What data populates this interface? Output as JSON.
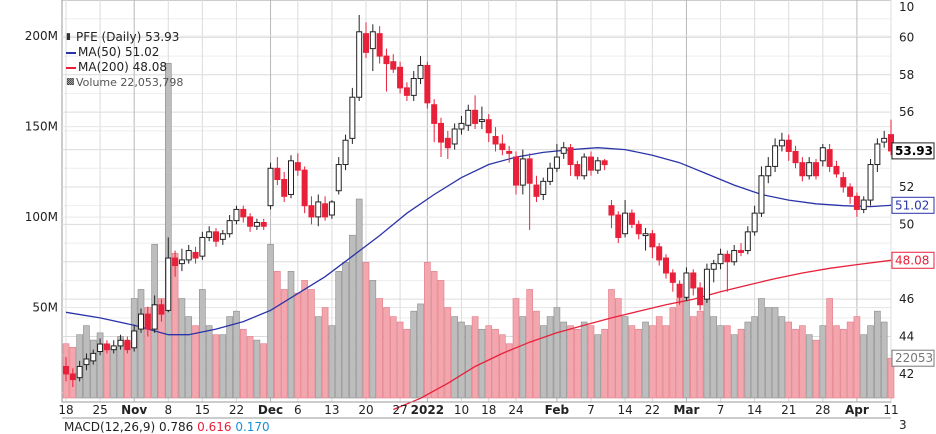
{
  "legend": {
    "title": "PFE (Daily) 53.93",
    "ma50": "MA(50) 51.02",
    "ma200": "MA(200) 48.08",
    "volume": "Volume 22,053,798"
  },
  "macd": {
    "label": "MACD(12,26,9) 0.786",
    "v2": "0.616",
    "v3": "0.170"
  },
  "colors": {
    "up": "#222222",
    "down": "#e8203a",
    "ma50": "#2a34a8",
    "ma200": "#e8203a",
    "vol_up": "#bdbdbd",
    "vol_down": "#f4a6ae",
    "grid": "#dcdcdc"
  },
  "chart_data": {
    "type": "candlestick",
    "price_axis": {
      "min": 40.5,
      "max": 62.0,
      "ticks": [
        42,
        44,
        46,
        48,
        50,
        52,
        54,
        56,
        58,
        60
      ],
      "top_partial": "10",
      "bottom_partial": "3"
    },
    "volume_axis": {
      "min": 0,
      "max": 220,
      "unit": "M",
      "ticks": [
        "50M",
        "100M",
        "150M",
        "200M"
      ],
      "tick_values": [
        50,
        100,
        150,
        200
      ]
    },
    "x_labels": [
      "18",
      "25",
      "Nov",
      "8",
      "15",
      "22",
      "Dec",
      "6",
      "13",
      "20",
      "27",
      "2022",
      "10",
      "18",
      "24",
      "Feb",
      "7",
      "14",
      "22",
      "Mar",
      "7",
      "14",
      "21",
      "28",
      "Apr",
      "11"
    ],
    "x_label_days": [
      0,
      5,
      10,
      15,
      20,
      25,
      30,
      34,
      39,
      44,
      49,
      53,
      58,
      62,
      66,
      72,
      77,
      82,
      86,
      91,
      96,
      101,
      106,
      111,
      116,
      121
    ],
    "month_boundaries": [
      10,
      30,
      53,
      72,
      91,
      116
    ],
    "last_price": "53.93",
    "ma50_last": "51.02",
    "ma200_last": "48.08",
    "volume_last": "22053",
    "candles": [
      [
        42.4,
        42.0,
        42.9,
        41.6,
        30
      ],
      [
        42.0,
        41.7,
        42.3,
        41.3,
        28
      ],
      [
        41.8,
        42.4,
        42.7,
        41.6,
        35
      ],
      [
        42.5,
        42.8,
        43.1,
        42.2,
        40
      ],
      [
        42.7,
        43.1,
        43.3,
        42.5,
        32
      ],
      [
        43.2,
        43.6,
        43.9,
        43.0,
        36
      ],
      [
        43.6,
        43.3,
        43.8,
        43.1,
        30
      ],
      [
        43.3,
        43.5,
        43.8,
        43.1,
        28
      ],
      [
        43.5,
        43.8,
        44.1,
        43.3,
        34
      ],
      [
        43.8,
        43.3,
        44.0,
        43.1,
        31
      ],
      [
        43.4,
        44.3,
        44.6,
        43.2,
        55
      ],
      [
        44.4,
        45.2,
        45.5,
        44.2,
        60
      ],
      [
        45.2,
        44.4,
        45.6,
        44.0,
        50
      ],
      [
        44.4,
        45.7,
        46.2,
        44.2,
        85
      ],
      [
        45.7,
        45.2,
        46.0,
        44.8,
        55
      ],
      [
        45.4,
        48.2,
        49.3,
        45.3,
        185
      ],
      [
        48.2,
        47.8,
        48.6,
        47.2,
        80
      ],
      [
        47.9,
        48.1,
        48.7,
        47.5,
        55
      ],
      [
        48.1,
        48.6,
        48.9,
        47.9,
        45
      ],
      [
        48.5,
        48.2,
        48.8,
        47.9,
        40
      ],
      [
        48.3,
        49.3,
        49.6,
        48.1,
        60
      ],
      [
        49.3,
        49.6,
        49.9,
        49.1,
        40
      ],
      [
        49.6,
        49.1,
        49.8,
        48.8,
        35
      ],
      [
        49.2,
        49.5,
        49.7,
        48.9,
        35
      ],
      [
        49.5,
        50.2,
        50.5,
        49.3,
        45
      ],
      [
        50.2,
        50.8,
        51.0,
        50.0,
        48
      ],
      [
        50.8,
        50.4,
        51.0,
        50.1,
        38
      ],
      [
        50.4,
        49.9,
        50.6,
        49.6,
        34
      ],
      [
        49.9,
        50.1,
        50.3,
        49.7,
        32
      ],
      [
        50.1,
        49.9,
        50.3,
        49.7,
        30
      ],
      [
        51.0,
        53.0,
        53.3,
        50.8,
        85
      ],
      [
        53.0,
        52.4,
        53.6,
        52.1,
        70
      ],
      [
        52.4,
        51.5,
        52.8,
        51.2,
        60
      ],
      [
        51.6,
        53.4,
        53.7,
        51.4,
        70
      ],
      [
        53.3,
        52.9,
        53.8,
        52.6,
        58
      ],
      [
        52.9,
        51.0,
        53.1,
        50.6,
        65
      ],
      [
        51.0,
        50.4,
        51.5,
        50.0,
        60
      ],
      [
        50.4,
        51.2,
        51.6,
        49.9,
        45
      ],
      [
        51.1,
        50.4,
        51.5,
        50.2,
        50
      ],
      [
        50.5,
        51.2,
        51.3,
        50.3,
        40
      ],
      [
        51.8,
        53.2,
        53.6,
        51.6,
        70
      ],
      [
        53.2,
        54.5,
        54.8,
        52.9,
        75
      ],
      [
        54.6,
        56.8,
        57.3,
        54.3,
        90
      ],
      [
        56.8,
        60.3,
        61.2,
        56.6,
        110
      ],
      [
        60.2,
        59.2,
        60.8,
        58.9,
        75
      ],
      [
        59.4,
        60.3,
        60.7,
        58.2,
        65
      ],
      [
        60.2,
        59.0,
        60.6,
        58.6,
        55
      ],
      [
        59.0,
        58.6,
        59.4,
        57.1,
        50
      ],
      [
        58.7,
        58.3,
        59.1,
        58.1,
        45
      ],
      [
        58.4,
        57.3,
        58.7,
        57.0,
        42
      ],
      [
        57.3,
        56.9,
        57.6,
        56.6,
        38
      ],
      [
        56.9,
        57.8,
        58.2,
        56.6,
        48
      ],
      [
        57.8,
        58.5,
        59.0,
        57.5,
        52
      ],
      [
        58.5,
        56.5,
        58.7,
        56.2,
        75
      ],
      [
        56.4,
        55.4,
        56.7,
        54.4,
        70
      ],
      [
        55.4,
        54.4,
        55.7,
        53.6,
        65
      ],
      [
        54.6,
        54.1,
        55.0,
        53.5,
        50
      ],
      [
        54.3,
        55.1,
        55.4,
        54.0,
        45
      ],
      [
        55.1,
        55.4,
        55.8,
        54.8,
        42
      ],
      [
        55.3,
        56.1,
        56.4,
        55.0,
        40
      ],
      [
        56.1,
        55.4,
        56.9,
        55.1,
        45
      ],
      [
        55.5,
        55.6,
        56.3,
        55.1,
        38
      ],
      [
        55.6,
        54.9,
        55.9,
        54.4,
        40
      ],
      [
        54.7,
        54.3,
        55.2,
        53.9,
        38
      ],
      [
        54.3,
        54.0,
        54.8,
        53.7,
        35
      ],
      [
        53.9,
        53.8,
        54.2,
        53.3,
        30
      ],
      [
        53.6,
        52.1,
        53.9,
        51.6,
        55
      ],
      [
        52.1,
        53.5,
        54.0,
        51.6,
        45
      ],
      [
        53.5,
        52.2,
        53.8,
        49.7,
        60
      ],
      [
        52.1,
        51.5,
        52.6,
        51.2,
        48
      ],
      [
        51.6,
        52.3,
        52.5,
        51.3,
        40
      ],
      [
        52.3,
        53.0,
        53.3,
        52.1,
        45
      ],
      [
        53.0,
        53.6,
        54.3,
        52.8,
        50
      ],
      [
        53.8,
        54.1,
        54.4,
        53.5,
        42
      ],
      [
        54.1,
        53.2,
        54.3,
        52.6,
        40
      ],
      [
        53.2,
        52.6,
        53.4,
        52.4,
        38
      ],
      [
        52.6,
        53.6,
        53.8,
        52.4,
        42
      ],
      [
        53.6,
        52.9,
        53.9,
        52.6,
        40
      ],
      [
        52.9,
        53.4,
        53.6,
        52.7,
        35
      ],
      [
        53.4,
        53.2,
        53.5,
        52.9,
        38
      ],
      [
        51.0,
        50.5,
        51.3,
        49.8,
        60
      ],
      [
        50.5,
        49.3,
        50.7,
        49.0,
        55
      ],
      [
        49.5,
        50.6,
        51.3,
        49.3,
        45
      ],
      [
        50.6,
        50.0,
        50.8,
        49.8,
        40
      ],
      [
        50.0,
        49.5,
        50.2,
        49.2,
        38
      ],
      [
        49.4,
        49.5,
        49.8,
        48.6,
        42
      ],
      [
        49.5,
        48.8,
        49.7,
        48.2,
        40
      ],
      [
        48.8,
        48.1,
        49.0,
        47.8,
        45
      ],
      [
        48.2,
        47.4,
        48.4,
        47.1,
        40
      ],
      [
        47.4,
        46.9,
        47.6,
        46.4,
        50
      ],
      [
        46.8,
        46.1,
        47.0,
        45.7,
        55
      ],
      [
        46.1,
        47.4,
        47.7,
        45.9,
        55
      ],
      [
        47.4,
        46.6,
        47.6,
        46.2,
        45
      ],
      [
        46.6,
        45.7,
        46.9,
        45.4,
        48
      ],
      [
        46.0,
        47.6,
        47.9,
        45.8,
        55
      ],
      [
        47.6,
        47.9,
        48.1,
        46.9,
        45
      ],
      [
        47.9,
        48.4,
        48.7,
        47.6,
        40
      ],
      [
        48.4,
        48.0,
        48.6,
        46.4,
        40
      ],
      [
        48.0,
        48.6,
        48.9,
        47.8,
        35
      ],
      [
        48.6,
        48.5,
        49.0,
        48.3,
        38
      ],
      [
        48.6,
        49.6,
        49.9,
        48.4,
        42
      ],
      [
        49.6,
        50.6,
        51.0,
        49.4,
        45
      ],
      [
        50.6,
        52.6,
        53.1,
        50.4,
        55
      ],
      [
        52.6,
        53.1,
        53.6,
        52.2,
        50
      ],
      [
        53.1,
        54.2,
        54.6,
        52.8,
        50
      ],
      [
        54.2,
        54.5,
        54.9,
        53.9,
        45
      ],
      [
        54.5,
        53.9,
        54.8,
        53.4,
        42
      ],
      [
        53.9,
        53.3,
        54.2,
        53.0,
        38
      ],
      [
        53.3,
        52.6,
        53.6,
        52.3,
        40
      ],
      [
        52.6,
        53.3,
        53.6,
        52.4,
        35
      ],
      [
        53.3,
        52.6,
        53.5,
        52.4,
        32
      ],
      [
        53.4,
        54.1,
        54.3,
        53.1,
        40
      ],
      [
        54.0,
        53.1,
        54.3,
        52.8,
        55
      ],
      [
        53.1,
        52.7,
        53.4,
        52.5,
        40
      ],
      [
        52.5,
        52.0,
        52.8,
        51.7,
        38
      ],
      [
        52.0,
        51.5,
        52.2,
        51.1,
        42
      ],
      [
        51.5,
        50.8,
        51.7,
        50.4,
        45
      ],
      [
        50.8,
        51.3,
        51.5,
        50.6,
        35
      ],
      [
        51.3,
        53.2,
        53.5,
        51.0,
        40
      ],
      [
        53.2,
        54.3,
        54.6,
        52.8,
        48
      ],
      [
        54.4,
        54.6,
        55.0,
        54.1,
        42
      ],
      [
        54.8,
        53.93,
        55.6,
        53.7,
        22
      ]
    ],
    "ma50": [
      [
        0,
        45.3
      ],
      [
        5,
        45.0
      ],
      [
        10,
        44.6
      ],
      [
        15,
        44.1
      ],
      [
        18,
        44.1
      ],
      [
        22,
        44.4
      ],
      [
        26,
        44.8
      ],
      [
        30,
        45.4
      ],
      [
        34,
        46.3
      ],
      [
        38,
        47.2
      ],
      [
        42,
        48.3
      ],
      [
        46,
        49.4
      ],
      [
        50,
        50.6
      ],
      [
        54,
        51.6
      ],
      [
        58,
        52.5
      ],
      [
        62,
        53.2
      ],
      [
        66,
        53.6
      ],
      [
        70,
        53.85
      ],
      [
        74,
        54.0
      ],
      [
        78,
        54.1
      ],
      [
        82,
        54.0
      ],
      [
        86,
        53.7
      ],
      [
        90,
        53.3
      ],
      [
        94,
        52.7
      ],
      [
        98,
        52.1
      ],
      [
        102,
        51.6
      ],
      [
        106,
        51.3
      ],
      [
        110,
        51.1
      ],
      [
        114,
        51.0
      ],
      [
        118,
        50.95
      ],
      [
        121,
        51.02
      ]
    ],
    "ma200": [
      [
        48,
        40.1
      ],
      [
        52,
        40.7
      ],
      [
        56,
        41.5
      ],
      [
        60,
        42.4
      ],
      [
        64,
        43.1
      ],
      [
        68,
        43.7
      ],
      [
        72,
        44.2
      ],
      [
        76,
        44.6
      ],
      [
        80,
        45.0
      ],
      [
        84,
        45.35
      ],
      [
        88,
        45.7
      ],
      [
        92,
        46.0
      ],
      [
        96,
        46.4
      ],
      [
        100,
        46.75
      ],
      [
        104,
        47.1
      ],
      [
        108,
        47.4
      ],
      [
        112,
        47.65
      ],
      [
        116,
        47.85
      ],
      [
        121,
        48.08
      ]
    ]
  }
}
